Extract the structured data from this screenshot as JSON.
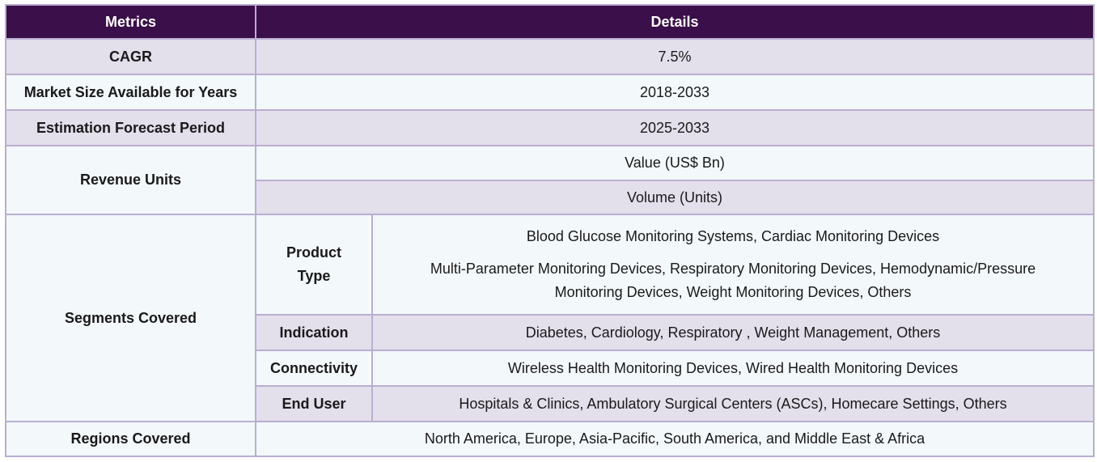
{
  "headers": {
    "metrics": "Metrics",
    "details": "Details"
  },
  "rows": {
    "cagr": {
      "label": "CAGR",
      "value": "7.5%"
    },
    "market_size": {
      "label": "Market Size Available for Years",
      "value": "2018-2033"
    },
    "forecast": {
      "label": "Estimation Forecast Period",
      "value": "2025-2033"
    },
    "revenue": {
      "label": "Revenue Units",
      "values": [
        "Value (US$ Bn)",
        "Volume (Units)"
      ]
    },
    "segments": {
      "label": "Segments Covered",
      "items": [
        {
          "label_line1": "Product",
          "label_line2": "Type",
          "lines": [
            "Blood Glucose Monitoring Systems, Cardiac Monitoring Devices",
            "Multi-Parameter Monitoring Devices, Respiratory Monitoring Devices, Hemodynamic/Pressure",
            "Monitoring Devices, Weight Monitoring Devices, Others"
          ]
        },
        {
          "label": "Indication",
          "value": "Diabetes, Cardiology, Respiratory , Weight Management, Others"
        },
        {
          "label": "Connectivity",
          "value": "Wireless Health Monitoring Devices, Wired Health Monitoring Devices"
        },
        {
          "label": "End User",
          "value": "Hospitals & Clinics, Ambulatory Surgical Centers (ASCs), Homecare Settings, Others"
        }
      ]
    },
    "regions": {
      "label": "Regions Covered",
      "value": "North America, Europe, Asia-Pacific, South America, and Middle East & Africa"
    }
  }
}
